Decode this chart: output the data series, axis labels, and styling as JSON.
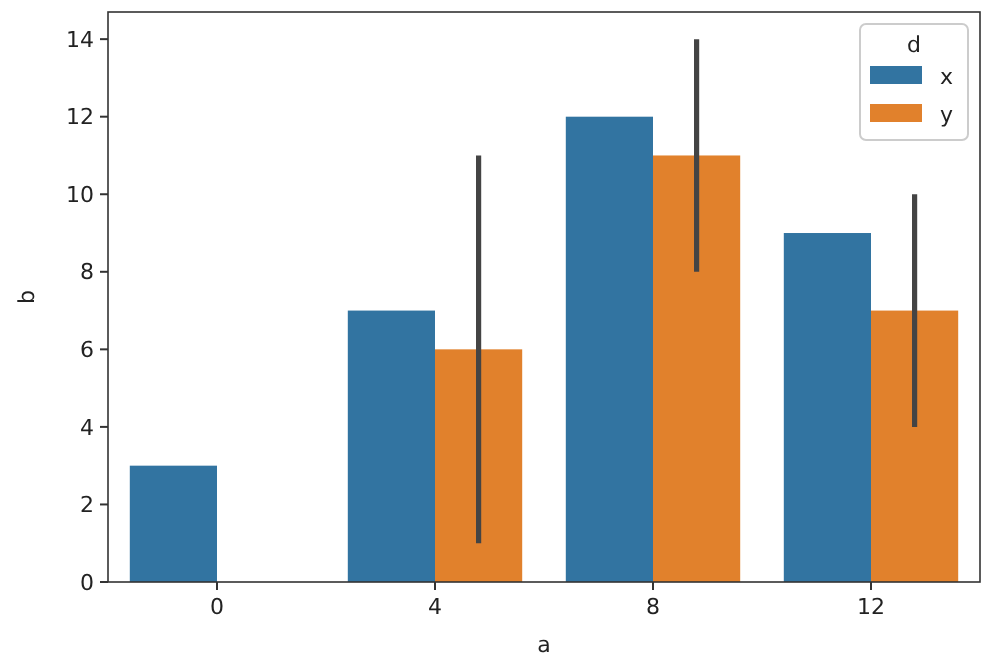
{
  "chart_data": {
    "type": "bar",
    "xlabel": "a",
    "ylabel": "b",
    "legend_title": "d",
    "legend": "top right",
    "grid": false,
    "categories": [
      "0",
      "4",
      "8",
      "12"
    ],
    "series": [
      {
        "name": "x",
        "color": "#3274a1",
        "values": [
          3,
          7,
          12,
          9
        ]
      },
      {
        "name": "y",
        "color": "#e1812c",
        "values": [
          null,
          6,
          11,
          7
        ],
        "errors": [
          null,
          [
            1,
            11
          ],
          [
            8,
            14
          ],
          [
            4,
            10
          ]
        ]
      }
    ],
    "ylim": [
      0,
      14.7
    ],
    "yticks": [
      0,
      2,
      4,
      6,
      8,
      10,
      12,
      14
    ]
  }
}
